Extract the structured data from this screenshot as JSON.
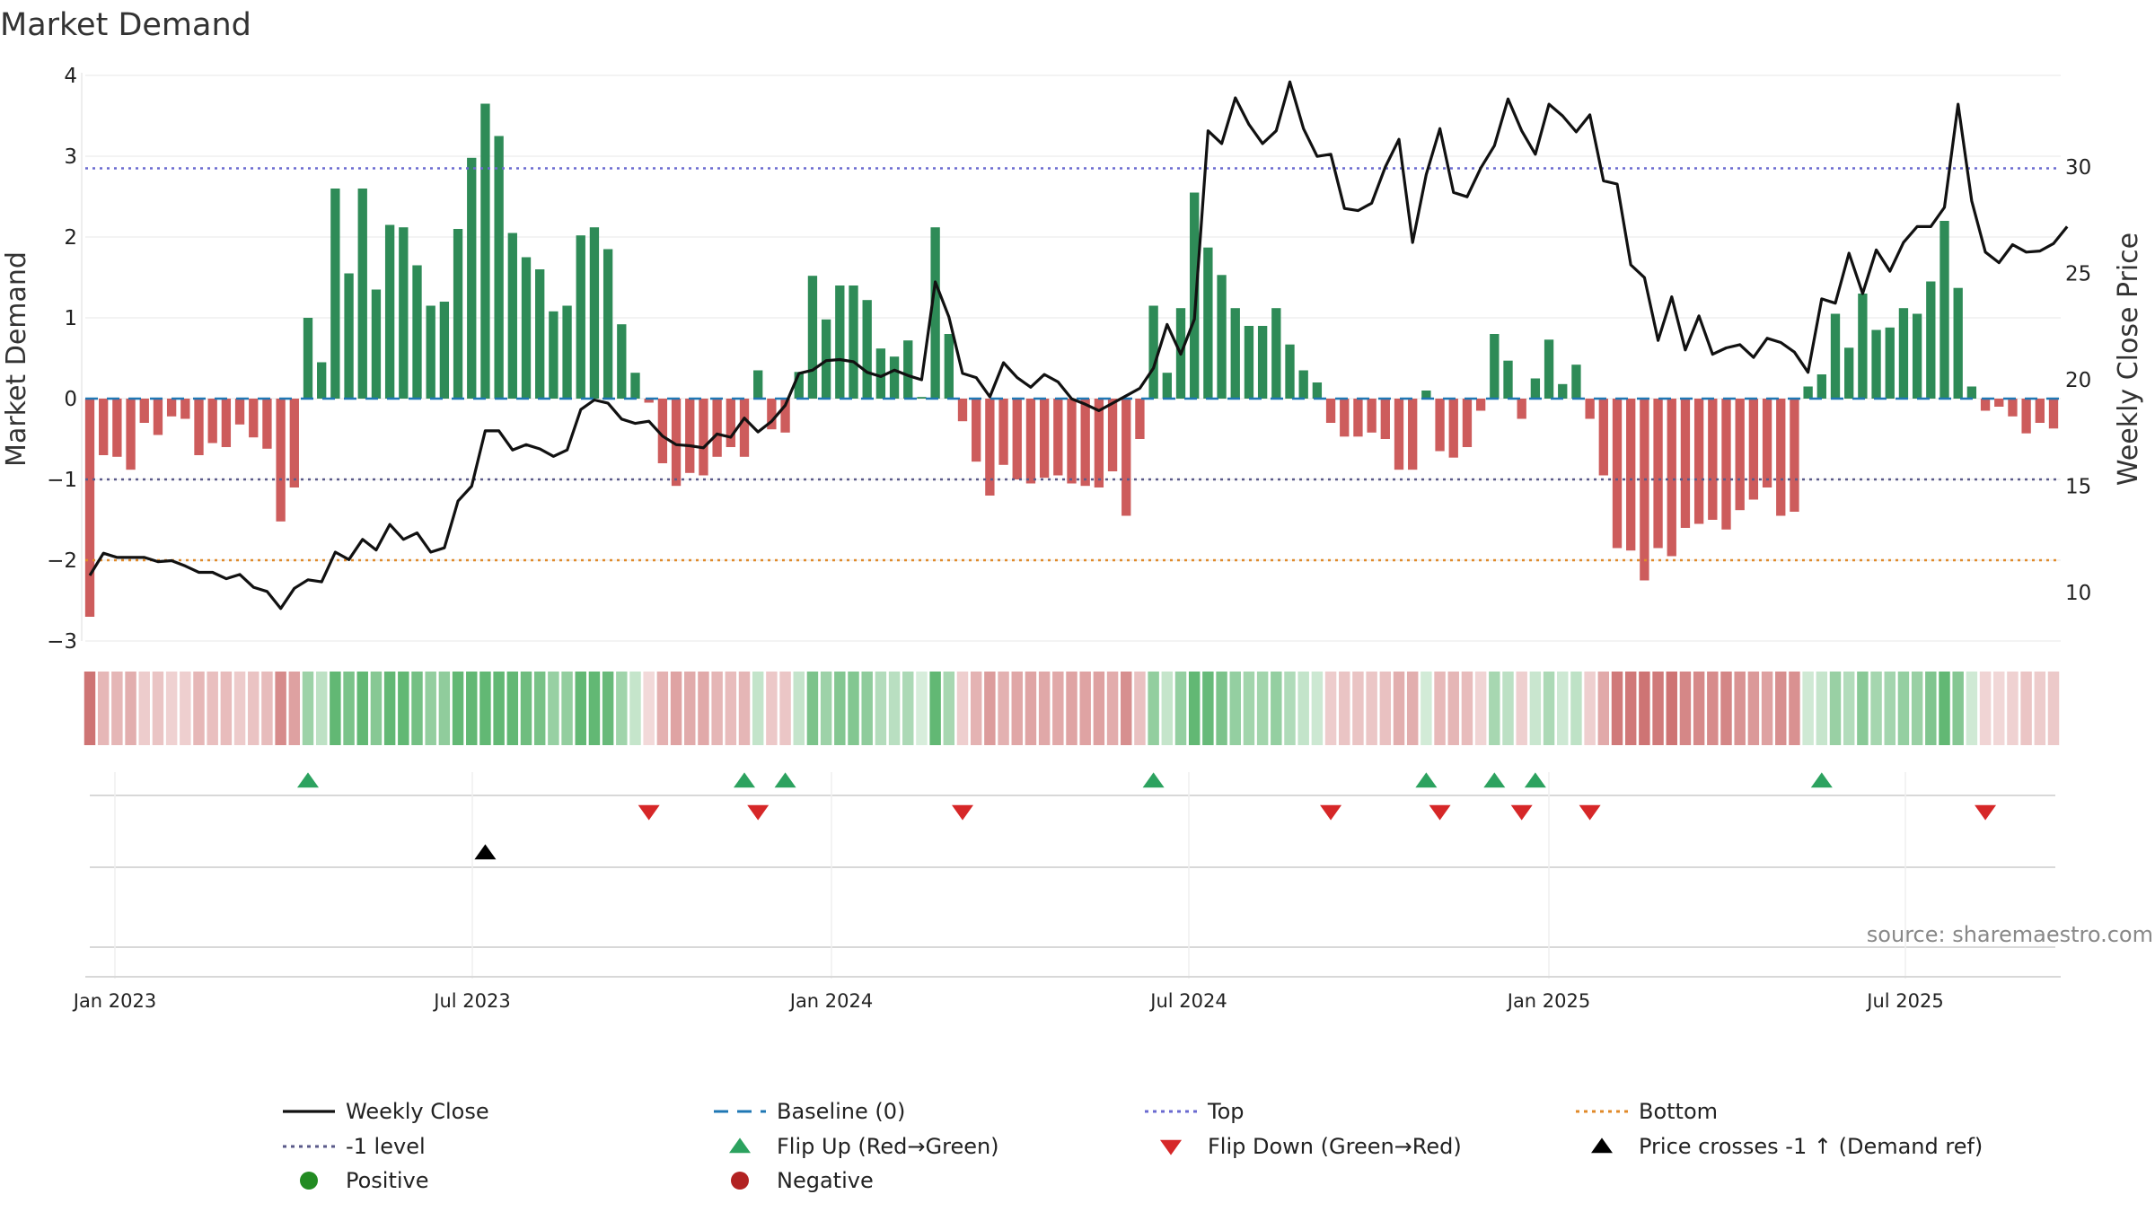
{
  "chart_data": {
    "type": "bar",
    "title": "Market Demand",
    "ylabel": "Market Demand",
    "y2label": "Weekly Close Price",
    "ylim": [
      -3,
      4
    ],
    "y2lim": [
      6.4,
      34.2
    ],
    "yticks": [
      "4",
      "3",
      "2",
      "1",
      "0",
      "−1",
      "−2",
      "−3"
    ],
    "y2ticks": [
      "30",
      "25",
      "20",
      "15",
      "10"
    ],
    "xticks": [
      "Jan 2023",
      "Jul 2023",
      "Jan 2024",
      "Jul 2024",
      "Jan 2025",
      "Jul 2025"
    ],
    "reference_lines": {
      "top": 2.85,
      "minus_one": -1,
      "bottom": -2,
      "baseline": 0
    },
    "demand": [
      -2.7,
      -0.7,
      -0.72,
      -0.88,
      -0.3,
      -0.45,
      -0.22,
      -0.25,
      -0.7,
      -0.55,
      -0.6,
      -0.32,
      -0.48,
      -0.62,
      -1.52,
      -1.1,
      1.0,
      0.45,
      2.6,
      1.55,
      2.6,
      1.35,
      2.15,
      2.12,
      1.65,
      1.15,
      1.2,
      2.1,
      2.98,
      3.65,
      3.25,
      2.05,
      1.75,
      1.6,
      1.08,
      1.15,
      2.02,
      2.12,
      1.85,
      0.92,
      0.32,
      -0.05,
      -0.8,
      -1.08,
      -0.92,
      -0.95,
      -0.72,
      -0.6,
      -0.72,
      0.35,
      -0.38,
      -0.42,
      0.33,
      1.52,
      0.98,
      1.4,
      1.4,
      1.22,
      0.62,
      0.52,
      0.72,
      0.02,
      2.12,
      0.8,
      -0.28,
      -0.78,
      -1.2,
      -0.82,
      -1.0,
      -1.05,
      -0.98,
      -0.95,
      -1.05,
      -1.08,
      -1.1,
      -0.9,
      -1.45,
      -0.5,
      1.15,
      0.32,
      1.12,
      2.55,
      1.87,
      1.53,
      1.12,
      0.9,
      0.9,
      1.12,
      0.67,
      0.35,
      0.2,
      -0.3,
      -0.47,
      -0.47,
      -0.42,
      -0.5,
      -0.88,
      -0.88,
      0.1,
      -0.65,
      -0.73,
      -0.6,
      -0.15,
      0.8,
      0.47,
      -0.25,
      0.25,
      0.73,
      0.18,
      0.42,
      -0.25,
      -0.95,
      -1.85,
      -1.88,
      -2.25,
      -1.85,
      -1.95,
      -1.6,
      -1.55,
      -1.5,
      -1.62,
      -1.38,
      -1.25,
      -1.1,
      -1.45,
      -1.4,
      0.15,
      0.3,
      1.05,
      0.63,
      1.3,
      0.85,
      0.88,
      1.12,
      1.05,
      1.45,
      2.2,
      1.37,
      0.15,
      -0.15,
      -0.1,
      -0.22,
      -0.43,
      -0.3,
      -0.37
    ],
    "weekly_close": [
      10.8,
      11.85,
      11.65,
      11.65,
      11.65,
      11.45,
      11.5,
      11.25,
      10.95,
      10.95,
      10.65,
      10.85,
      10.25,
      10.05,
      9.25,
      10.2,
      10.6,
      10.5,
      11.9,
      11.55,
      12.5,
      12.0,
      13.2,
      12.5,
      12.8,
      11.9,
      12.1,
      14.3,
      15.0,
      17.6,
      17.6,
      16.7,
      16.95,
      16.75,
      16.4,
      16.7,
      18.6,
      19.05,
      18.9,
      18.15,
      17.95,
      18.05,
      17.35,
      16.95,
      16.9,
      16.8,
      17.45,
      17.3,
      18.2,
      17.55,
      18.05,
      18.8,
      20.3,
      20.45,
      20.9,
      20.95,
      20.85,
      20.35,
      20.15,
      20.45,
      20.2,
      20.0,
      24.6,
      22.95,
      20.3,
      20.1,
      19.2,
      20.8,
      20.1,
      19.65,
      20.25,
      19.9,
      19.1,
      18.85,
      18.55,
      18.9,
      19.25,
      19.6,
      20.55,
      22.6,
      21.2,
      22.85,
      31.7,
      31.1,
      33.25,
      32.0,
      31.1,
      31.7,
      34.0,
      31.8,
      30.5,
      30.6,
      28.05,
      27.95,
      28.3,
      30.0,
      31.3,
      26.45,
      29.65,
      31.8,
      28.8,
      28.6,
      29.95,
      31.0,
      33.2,
      31.7,
      30.6,
      32.95,
      32.4,
      31.65,
      32.45,
      29.35,
      29.2,
      25.4,
      24.8,
      21.85,
      23.9,
      21.4,
      23.0,
      21.2,
      21.5,
      21.65,
      21.05,
      21.95,
      21.75,
      21.3,
      20.35,
      23.8,
      23.6,
      25.95,
      24.05,
      26.1,
      25.1,
      26.45,
      27.2,
      27.2,
      28.1,
      32.95,
      28.4,
      26.0,
      25.5,
      26.35,
      26.0,
      26.05,
      26.4,
      27.2
    ],
    "bar_colors": {
      "positive": "#2e8b57",
      "negative": "#cd5c5c"
    },
    "flip_up": [
      16,
      48,
      51,
      78,
      98,
      103,
      106,
      127
    ],
    "flip_down": [
      41,
      49,
      64,
      91,
      99,
      105,
      110,
      139
    ],
    "price_cross": [
      29
    ],
    "source": "source: sharemaestro.com",
    "legend": [
      {
        "label": "Weekly Close",
        "kind": "line",
        "color": "#111111"
      },
      {
        "label": "Baseline (0)",
        "kind": "dash",
        "color": "#1f77b4"
      },
      {
        "label": "Top",
        "kind": "dot",
        "color": "#6a6ad0"
      },
      {
        "label": "Bottom",
        "kind": "dot",
        "color": "#e08a2a"
      },
      {
        "label": "-1 level",
        "kind": "dot",
        "color": "#5a5a8a"
      },
      {
        "label": "Flip Up (Red→Green)",
        "kind": "tri-up",
        "color": "#2ca25f"
      },
      {
        "label": "Flip Down (Green→Red)",
        "kind": "tri-down",
        "color": "#d62728"
      },
      {
        "label": "Price crosses -1 ↑ (Demand ref)",
        "kind": "tri-up",
        "color": "#000000"
      },
      {
        "label": "Positive",
        "kind": "circle",
        "color": "#228b22"
      },
      {
        "label": "Negative",
        "kind": "circle",
        "color": "#b22222"
      }
    ]
  }
}
